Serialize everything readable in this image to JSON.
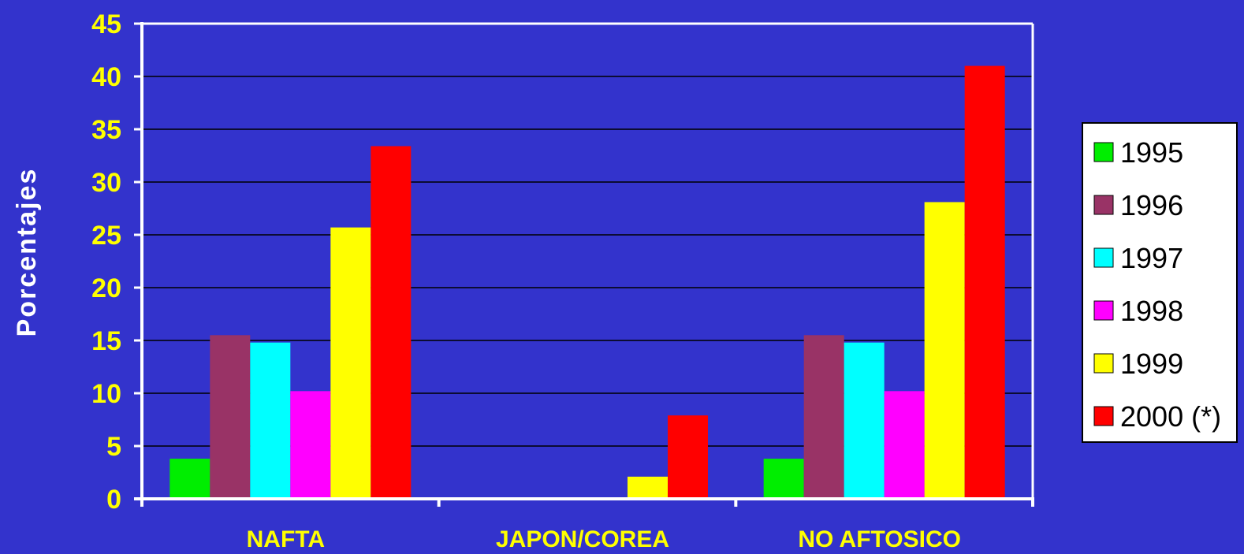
{
  "chart_data": {
    "type": "bar",
    "ylabel": "Porcentajes",
    "xlabel": "",
    "ylim": [
      0,
      45
    ],
    "yticks": [
      0,
      5,
      10,
      15,
      20,
      25,
      30,
      35,
      40,
      45
    ],
    "ytick_labels": [
      "0",
      "5",
      "10",
      "15",
      "20",
      "25",
      "30",
      "35",
      "40",
      "45"
    ],
    "grid": true,
    "legend_position": "right",
    "categories": [
      "NAFTA",
      "JAPON/COREA",
      "NO AFTOSICO"
    ],
    "series": [
      {
        "name": "1995",
        "color": "#00ee00",
        "values": [
          3.8,
          0,
          3.8
        ]
      },
      {
        "name": "1996",
        "color": "#993366",
        "values": [
          15.5,
          0,
          15.5
        ]
      },
      {
        "name": "1997",
        "color": "#00ffff",
        "values": [
          14.8,
          0,
          14.8
        ]
      },
      {
        "name": "1998",
        "color": "#ff00ff",
        "values": [
          10.2,
          0.1,
          10.2
        ]
      },
      {
        "name": "1999",
        "color": "#ffff00",
        "values": [
          25.7,
          2.1,
          28.1
        ]
      },
      {
        "name": "2000 (*)",
        "color": "#ff0000",
        "values": [
          33.4,
          7.9,
          41.0
        ]
      }
    ]
  },
  "colors": {
    "background": "#3333cc",
    "axis": "#ffffff",
    "gridline": "#000000",
    "tick_label": "#ffff00",
    "category_label": "#ffff00",
    "axis_title": "#ffffff",
    "legend_background": "#ffffff",
    "legend_border": "#000000",
    "legend_text": "#000000"
  }
}
